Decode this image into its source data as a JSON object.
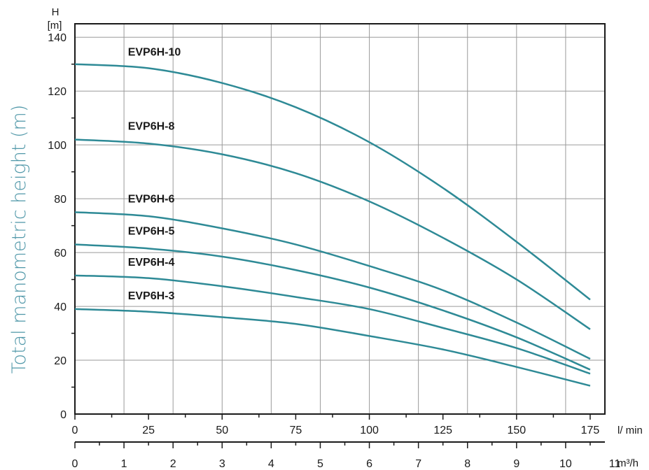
{
  "chart_data": {
    "type": "line",
    "title": "",
    "ylabel": "Total manometric height (m)",
    "y_unit_top": "H",
    "y_unit_bottom": "[m]",
    "x_unit": "l/ min",
    "x2_unit": "m³/h",
    "ylim": [
      0,
      145
    ],
    "xlim": [
      0,
      180
    ],
    "y_ticks": [
      0,
      20,
      40,
      60,
      80,
      100,
      120,
      140
    ],
    "x_ticks": [
      0,
      25,
      50,
      75,
      100,
      125,
      150,
      175
    ],
    "x2_ticks": [
      0,
      1,
      2,
      3,
      4,
      5,
      6,
      7,
      8,
      9,
      10,
      11
    ],
    "grid": true,
    "colors": {
      "series": "#2e8a96",
      "ylabel": "#4f97a8",
      "axis": "#1a1a1a",
      "grid": "#9a9a9a"
    },
    "x": [
      0,
      25,
      50,
      75,
      100,
      125,
      150,
      175
    ],
    "series": [
      {
        "name": "EVP6H-10",
        "values": [
          130,
          128.5,
          123,
          114,
          101,
          84,
          64,
          42.5
        ]
      },
      {
        "name": "EVP6H-8",
        "values": [
          102,
          100.5,
          96.5,
          89.5,
          79,
          65.5,
          50,
          31.5
        ]
      },
      {
        "name": "EVP6H-6",
        "values": [
          75,
          73.5,
          69,
          63,
          55,
          46,
          34,
          20.5
        ]
      },
      {
        "name": "EVP6H-5",
        "values": [
          63,
          61.5,
          58.5,
          53.5,
          47,
          38.5,
          28.5,
          16.5
        ]
      },
      {
        "name": "EVP6H-4",
        "values": [
          51.5,
          50.5,
          47.5,
          43.5,
          39,
          32,
          24.5,
          15
        ]
      },
      {
        "name": "EVP6H-3",
        "values": [
          39,
          38,
          36,
          33.5,
          29,
          24,
          17.5,
          10.5
        ]
      }
    ]
  }
}
